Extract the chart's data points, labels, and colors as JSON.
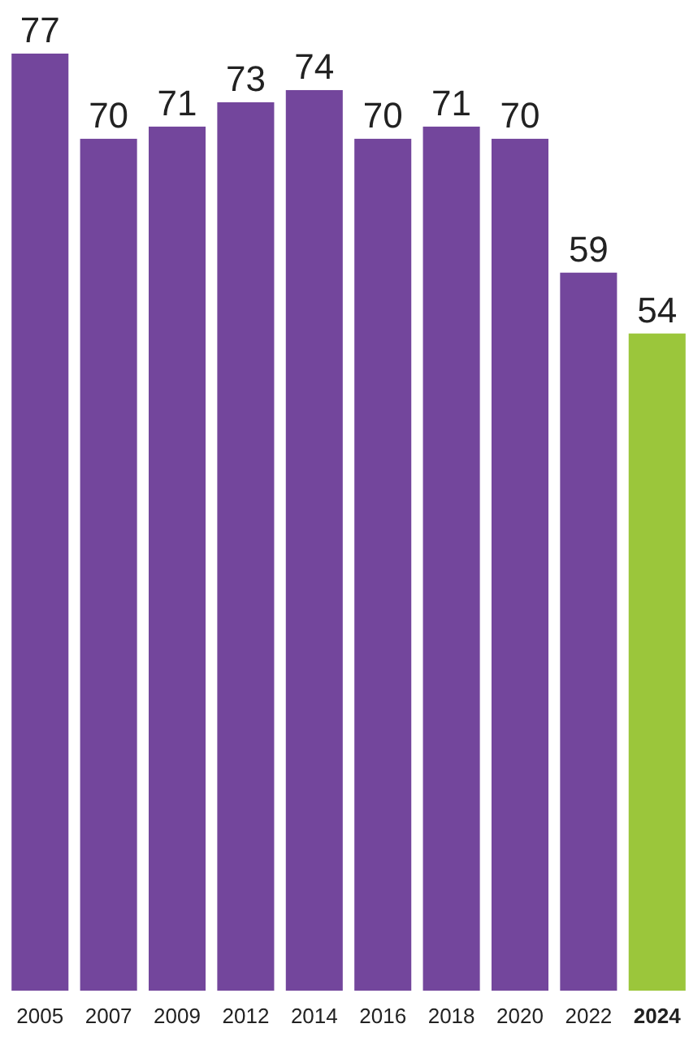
{
  "chart_data": {
    "type": "bar",
    "categories": [
      "2005",
      "2007",
      "2009",
      "2012",
      "2014",
      "2016",
      "2018",
      "2020",
      "2022",
      "2024"
    ],
    "values": [
      77,
      70,
      71,
      73,
      74,
      70,
      71,
      70,
      59,
      54
    ],
    "colors": [
      "#73469c",
      "#73469c",
      "#73469c",
      "#73469c",
      "#73469c",
      "#73469c",
      "#73469c",
      "#73469c",
      "#73469c",
      "#9bc63b"
    ],
    "data_labels": true
  }
}
